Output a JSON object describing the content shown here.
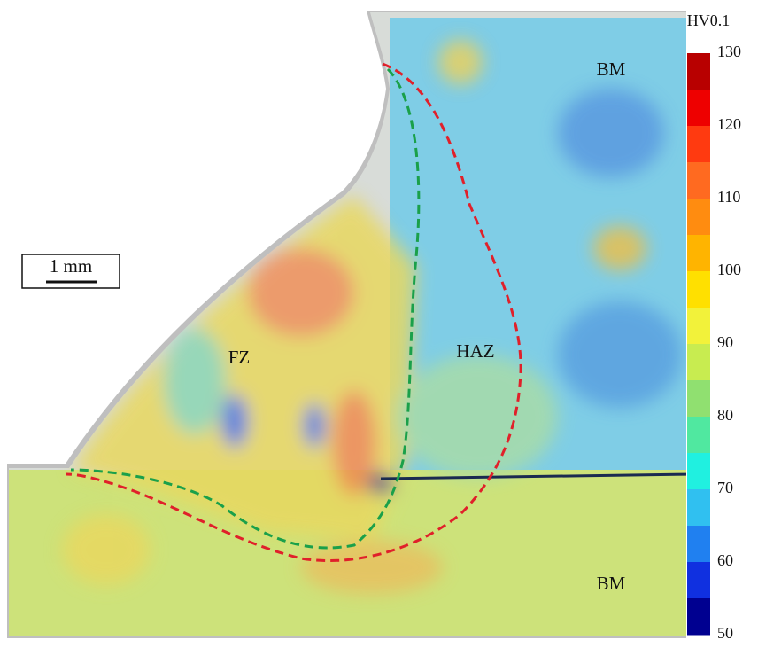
{
  "colorbar": {
    "title": "HV0.1",
    "ticks": [
      130,
      120,
      110,
      100,
      90,
      80,
      70,
      60,
      50
    ],
    "colors": [
      "#b80000",
      "#ee0000",
      "#ff3a10",
      "#ff6a20",
      "#ff8c10",
      "#ffb400",
      "#ffe000",
      "#f2f23a",
      "#c8ec50",
      "#90e070",
      "#50e8a0",
      "#20f0e0",
      "#30c0f0",
      "#2080f0",
      "#1030e0",
      "#000090"
    ]
  },
  "labels": {
    "bm_top": "BM",
    "bm_bottom": "BM",
    "fz": "FZ",
    "haz": "HAZ"
  },
  "scale_bar": "1 mm"
}
